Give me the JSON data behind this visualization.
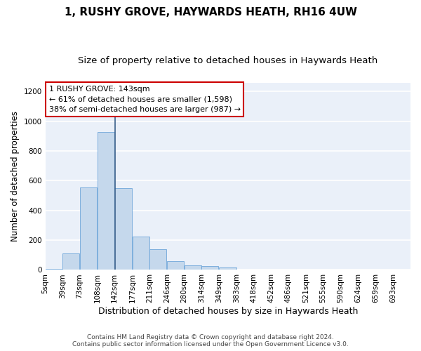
{
  "title": "1, RUSHY GROVE, HAYWARDS HEATH, RH16 4UW",
  "subtitle": "Size of property relative to detached houses in Haywards Heath",
  "xlabel": "Distribution of detached houses by size in Haywards Heath",
  "ylabel": "Number of detached properties",
  "footer_line1": "Contains HM Land Registry data © Crown copyright and database right 2024.",
  "footer_line2": "Contains public sector information licensed under the Open Government Licence v3.0.",
  "annotation_line1": "1 RUSHY GROVE: 143sqm",
  "annotation_line2": "← 61% of detached houses are smaller (1,598)",
  "annotation_line3": "38% of semi-detached houses are larger (987) →",
  "bar_color": "#c5d8ec",
  "bar_edge_color": "#5b9bd5",
  "vline_color": "#3a5f8a",
  "vline_x": 143,
  "annotation_box_facecolor": "#ffffff",
  "annotation_box_edgecolor": "#cc0000",
  "categories": [
    5,
    39,
    73,
    108,
    142,
    177,
    211,
    246,
    280,
    314,
    349,
    383,
    418,
    452,
    486,
    521,
    555,
    590,
    624,
    659,
    693
  ],
  "bin_width": 34,
  "bar_heights": [
    8,
    113,
    557,
    930,
    549,
    224,
    140,
    57,
    32,
    25,
    15,
    3,
    0,
    0,
    0,
    0,
    0,
    0,
    0,
    0,
    0
  ],
  "ylim": [
    0,
    1260
  ],
  "xlim": [
    5,
    728
  ],
  "yticks": [
    0,
    200,
    400,
    600,
    800,
    1000,
    1200
  ],
  "background_color": "#eaf0f9",
  "grid_color": "#ffffff",
  "title_fontsize": 11,
  "subtitle_fontsize": 9.5,
  "axis_label_fontsize": 9,
  "tick_fontsize": 7.5,
  "ylabel_fontsize": 8.5,
  "annotation_fontsize": 8,
  "footer_fontsize": 6.5
}
